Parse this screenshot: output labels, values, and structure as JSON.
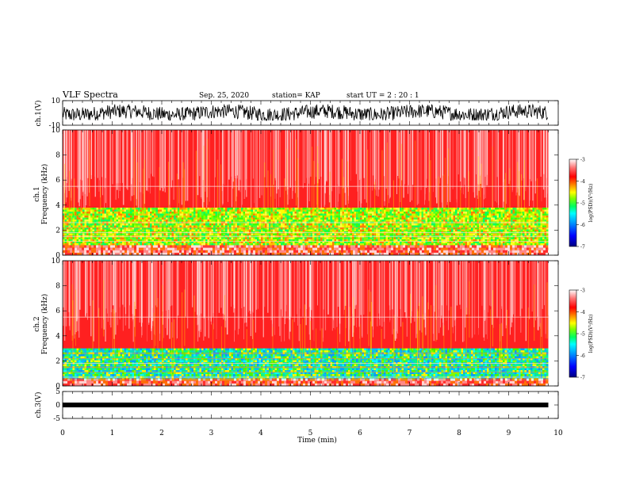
{
  "header": {
    "title": "VLF Spectra",
    "date": "Sep. 25, 2020",
    "station": "station= KAP",
    "start": "start  UT =   2 : 20 : 1"
  },
  "chart_data": [
    {
      "panel": "ch1_waveform",
      "type": "line",
      "ylabel": "ch.1(V)",
      "ylim": [
        -10,
        10
      ],
      "yticks": [
        "10",
        "-10"
      ],
      "xlim": [
        0,
        10
      ],
      "trace_color": "#000000",
      "data_extent_min": 9.8,
      "approx_range": [
        -6,
        7
      ]
    },
    {
      "panel": "ch1_spectrogram",
      "type": "heatmap",
      "ylabel": "ch.1\nFrequency (kHz)",
      "ylim": [
        0,
        10
      ],
      "yticks": [
        "0",
        "2",
        "4",
        "6",
        "8",
        "10"
      ],
      "xlim": [
        0,
        10
      ],
      "data_extent_min": 9.8,
      "bands": [
        {
          "f_from": 0,
          "f_to": 0.8,
          "level": "mixed"
        },
        {
          "f_from": 0.8,
          "f_to": 3.8,
          "level": "green/yellow (~-4.8)"
        },
        {
          "f_from": 3.8,
          "f_to": 10,
          "level": "red (~-3.8)"
        }
      ],
      "colorbar": {
        "label": "log(PSD)(V²/Hz)",
        "min": -7,
        "max": -3,
        "ticks": [
          "-3",
          "-4",
          "-5",
          "-6",
          "-7"
        ]
      }
    },
    {
      "panel": "ch2_spectrogram",
      "type": "heatmap",
      "ylabel": "ch.2\nFrequency (kHz)",
      "ylim": [
        0,
        10
      ],
      "yticks": [
        "0",
        "2",
        "4",
        "6",
        "8",
        "10"
      ],
      "xlim": [
        0,
        10
      ],
      "data_extent_min": 9.8,
      "bands": [
        {
          "f_from": 0,
          "f_to": 0.6,
          "level": "mixed"
        },
        {
          "f_from": 0.6,
          "f_to": 3.0,
          "level": "cyan/green (~-5.3)"
        },
        {
          "f_from": 3.0,
          "f_to": 10,
          "level": "red (~-3.8)"
        }
      ],
      "colorbar": {
        "label": "log(PSD)(V²/Hz)",
        "min": -7,
        "max": -3,
        "ticks": [
          "-3",
          "-4",
          "-5",
          "-6",
          "-7"
        ]
      }
    },
    {
      "panel": "ch3_waveform",
      "type": "line",
      "ylabel": "ch.3(V)",
      "ylim": [
        -5,
        5
      ],
      "yticks": [
        "5",
        "0",
        "-5"
      ],
      "xlim": [
        0,
        10
      ],
      "trace_color": "#000000",
      "data_extent_min": 9.8,
      "approx_range": [
        -0.3,
        0.3
      ]
    }
  ],
  "x_axis": {
    "label": "Time (min)",
    "ticks": [
      "0",
      "1",
      "2",
      "3",
      "4",
      "5",
      "6",
      "7",
      "8",
      "9",
      "10"
    ]
  },
  "colormap": [
    "#000080",
    "#0000ff",
    "#00a0ff",
    "#00ffff",
    "#00ff80",
    "#40ff00",
    "#c0ff00",
    "#ffff00",
    "#ffa000",
    "#ff3000",
    "#ff0000",
    "#ffffff"
  ]
}
